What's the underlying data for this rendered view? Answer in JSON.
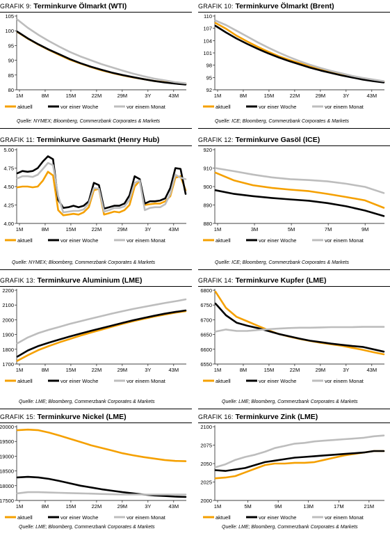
{
  "legend": [
    "aktuell",
    "vor einer Woche",
    "vor einem Monat"
  ],
  "colors": {
    "aktuell": "#f5a000",
    "woche": "#000000",
    "monat": "#bdbdbd"
  },
  "sources": {
    "s1": "Quelle: NYMEX; Bloomberg, Commerzbank Corporates & Markets",
    "s2": "Quelle: ICE; Bloomberg, Commerzbank Corporates & Markets",
    "s3": "Quelle: NYMEX; Bloomberg, Commerzbank Corporates & Markets",
    "s4": "Quelle: ICE; Bloomberg, Commerzbank Corporates & Markets",
    "s5": "Quelle: LME; Bloomberg, Commerzbank Corporates & Markets",
    "s6": "Quelle: LME; Bloomberg, Commerzbank Corporates & Markets"
  },
  "chart_data": [
    {
      "type": "line",
      "title_prefix": "GRAFIK 9:",
      "title": "Terminkurve Ölmarkt (WTI)",
      "x_ticks": [
        "1M",
        "8M",
        "15M",
        "22M",
        "29M",
        "3Y",
        "43M"
      ],
      "ylim": [
        80,
        105
      ],
      "y_ticks": [
        "80",
        "85",
        "90",
        "95",
        "100",
        "105"
      ],
      "series": [
        {
          "name": "aktuell",
          "values": [
            99.6,
            97.3,
            95.3,
            93.5,
            91.8,
            90.2,
            88.9,
            87.7,
            86.6,
            85.7,
            84.9,
            84.2,
            83.6,
            83.0,
            82.6,
            82.2,
            82.0
          ]
        },
        {
          "name": "vor einer Woche",
          "values": [
            99.7,
            97.4,
            95.4,
            93.6,
            92.0,
            90.4,
            89.0,
            87.8,
            86.8,
            85.8,
            85.0,
            84.3,
            83.6,
            83.0,
            82.5,
            82.1,
            81.8
          ]
        },
        {
          "name": "vor einem Monat",
          "values": [
            103.8,
            101.0,
            98.6,
            96.5,
            94.6,
            92.8,
            91.3,
            90.0,
            88.7,
            87.6,
            86.5,
            85.5,
            84.6,
            83.8,
            83.2,
            82.6,
            82.2
          ]
        }
      ]
    },
    {
      "type": "line",
      "title_prefix": "GRAFIK 10:",
      "title": "Terminkurve Ölmarkt (Brent)",
      "x_ticks": [
        "1M",
        "8M",
        "15M",
        "22M",
        "29M",
        "3Y",
        "43M"
      ],
      "ylim": [
        92,
        110
      ],
      "y_ticks": [
        "92",
        "95",
        "98",
        "101",
        "104",
        "107",
        "110"
      ],
      "series": [
        {
          "name": "aktuell",
          "values": [
            108.3,
            106.9,
            105.2,
            103.8,
            102.5,
            101.3,
            100.2,
            99.3,
            98.5,
            97.7,
            97.0,
            96.4,
            95.8,
            95.3,
            94.8,
            94.4,
            94.0
          ]
        },
        {
          "name": "vor einer Woche",
          "values": [
            107.6,
            106.0,
            104.5,
            103.2,
            102.0,
            100.9,
            99.9,
            99.0,
            98.2,
            97.4,
            96.7,
            96.1,
            95.5,
            95.0,
            94.5,
            94.1,
            93.8
          ]
        },
        {
          "name": "vor einem Monat",
          "values": [
            108.9,
            107.8,
            106.4,
            105.0,
            103.6,
            102.3,
            101.1,
            100.0,
            99.0,
            98.1,
            97.3,
            96.6,
            96.0,
            95.4,
            94.9,
            94.5,
            94.1
          ]
        }
      ]
    },
    {
      "type": "line",
      "title_prefix": "GRAFIK 11:",
      "title": "Terminkurve Gasmarkt (Henry Hub)",
      "x_ticks": [
        "1M",
        "8M",
        "15M",
        "22M",
        "29M",
        "3Y",
        "43M"
      ],
      "ylim": [
        4.0,
        5.0
      ],
      "y_ticks": [
        "4.00",
        "4.25",
        "4.50",
        "4.75",
        "5.00"
      ],
      "series": [
        {
          "name": "aktuell",
          "values": [
            4.49,
            4.5,
            4.5,
            4.49,
            4.5,
            4.58,
            4.7,
            4.65,
            4.18,
            4.11,
            4.12,
            4.13,
            4.12,
            4.15,
            4.22,
            4.45,
            4.47,
            4.12,
            4.14,
            4.16,
            4.15,
            4.18,
            4.25,
            4.5,
            4.58,
            4.25,
            4.26,
            4.27,
            4.27,
            4.3,
            4.37,
            4.62,
            4.64,
            4.45
          ]
        },
        {
          "name": "vor einer Woche",
          "values": [
            4.68,
            4.71,
            4.7,
            4.71,
            4.75,
            4.84,
            4.91,
            4.87,
            4.32,
            4.21,
            4.22,
            4.24,
            4.22,
            4.24,
            4.3,
            4.55,
            4.52,
            4.2,
            4.22,
            4.24,
            4.24,
            4.27,
            4.38,
            4.64,
            4.6,
            4.27,
            4.3,
            4.3,
            4.31,
            4.34,
            4.48,
            4.75,
            4.74,
            4.4
          ]
        },
        {
          "name": "vor einem Monat",
          "values": [
            4.61,
            4.64,
            4.64,
            4.63,
            4.66,
            4.74,
            4.82,
            4.79,
            4.37,
            4.15,
            4.16,
            4.17,
            4.17,
            4.19,
            4.27,
            4.48,
            4.47,
            4.16,
            4.18,
            4.21,
            4.21,
            4.23,
            4.32,
            4.55,
            4.58,
            4.18,
            4.21,
            4.22,
            4.22,
            4.26,
            4.4,
            4.66,
            4.62,
            4.6
          ]
        }
      ]
    },
    {
      "type": "line",
      "title_prefix": "GRAFIK 12:",
      "title": "Terminkurve Gasöl (ICE)",
      "x_ticks": [
        "1M",
        "3M",
        "5M",
        "7M",
        "9M"
      ],
      "ylim": [
        880,
        920
      ],
      "y_ticks": [
        "880",
        "890",
        "900",
        "910",
        "920"
      ],
      "series": [
        {
          "name": "aktuell",
          "values": [
            907.5,
            903.3,
            900.7,
            899.3,
            898.3,
            897.5,
            896.0,
            894.3,
            892.5,
            888.5
          ]
        },
        {
          "name": "vor einer Woche",
          "values": [
            898.0,
            896.0,
            894.8,
            893.8,
            893.0,
            892.3,
            891.0,
            889.3,
            887.0,
            884.0
          ]
        },
        {
          "name": "vor einem Monat",
          "values": [
            910.0,
            908.3,
            906.5,
            905.0,
            904.0,
            903.5,
            902.8,
            901.5,
            899.8,
            896.5
          ]
        }
      ]
    },
    {
      "type": "line",
      "title_prefix": "GRAFIK 13:",
      "title": "Terminkurve Aluminium (LME)",
      "x_ticks": [
        "1M",
        "8M",
        "15M",
        "22M",
        "29M",
        "3Y",
        "43M"
      ],
      "ylim": [
        1700,
        2200
      ],
      "y_ticks": [
        "1700",
        "1800",
        "1900",
        "2000",
        "2100",
        "2200"
      ],
      "series": [
        {
          "name": "aktuell",
          "values": [
            1722,
            1760,
            1795,
            1822,
            1847,
            1870,
            1893,
            1913,
            1933,
            1953,
            1972,
            1990,
            2006,
            2021,
            2035,
            2048,
            2058
          ]
        },
        {
          "name": "vor einer Woche",
          "values": [
            1750,
            1792,
            1822,
            1845,
            1866,
            1887,
            1906,
            1925,
            1943,
            1961,
            1979,
            1996,
            2012,
            2027,
            2041,
            2053,
            2063
          ]
        },
        {
          "name": "vor einem Monat",
          "values": [
            1840,
            1880,
            1910,
            1932,
            1952,
            1972,
            1990,
            2008,
            2025,
            2042,
            2058,
            2073,
            2087,
            2100,
            2113,
            2125,
            2138
          ]
        }
      ]
    },
    {
      "type": "line",
      "title_prefix": "GRAFIK 14:",
      "title": "Terminkurve Kupfer (LME)",
      "x_ticks": [
        "1M",
        "8M",
        "15M",
        "22M",
        "29M",
        "3Y",
        "43M"
      ],
      "ylim": [
        6550,
        6800
      ],
      "y_ticks": [
        "6550",
        "6600",
        "6650",
        "6700",
        "6750",
        "6800"
      ],
      "series": [
        {
          "name": "aktuell",
          "values": [
            6795,
            6740,
            6710,
            6695,
            6680,
            6665,
            6652,
            6643,
            6635,
            6628,
            6622,
            6617,
            6612,
            6605,
            6598,
            6590,
            6583
          ]
        },
        {
          "name": "vor einer Woche",
          "values": [
            6755,
            6715,
            6690,
            6680,
            6672,
            6662,
            6652,
            6644,
            6636,
            6629,
            6624,
            6619,
            6615,
            6611,
            6608,
            6600,
            6592
          ]
        },
        {
          "name": "vor einem Monat",
          "values": [
            6660,
            6667,
            6662,
            6662,
            6665,
            6668,
            6670,
            6672,
            6673,
            6673,
            6674,
            6675,
            6675,
            6675,
            6676,
            6676,
            6676
          ]
        }
      ]
    },
    {
      "type": "line",
      "title_prefix": "GRAFIK 15:",
      "title": "Terminkurve Nickel (LME)",
      "x_ticks": [
        "1M",
        "8M",
        "15M",
        "22M",
        "29M",
        "3Y",
        "43M"
      ],
      "ylim": [
        17500,
        20000
      ],
      "y_ticks": [
        "17500",
        "18000",
        "18500",
        "19000",
        "19500",
        "20000"
      ],
      "series": [
        {
          "name": "aktuell",
          "values": [
            19880,
            19900,
            19880,
            19800,
            19700,
            19590,
            19480,
            19370,
            19280,
            19190,
            19100,
            19030,
            18970,
            18920,
            18870,
            18840,
            18830
          ]
        },
        {
          "name": "vor einer Woche",
          "values": [
            18280,
            18300,
            18280,
            18230,
            18160,
            18080,
            18000,
            17940,
            17880,
            17830,
            17780,
            17740,
            17700,
            17670,
            17650,
            17630,
            17620
          ]
        },
        {
          "name": "vor einem Monat",
          "values": [
            17740,
            17780,
            17780,
            17770,
            17760,
            17750,
            17740,
            17730,
            17720,
            17710,
            17700,
            17700,
            17700,
            17700,
            17700,
            17700,
            17700
          ]
        }
      ]
    },
    {
      "type": "line",
      "title_prefix": "GRAFIK 16:",
      "title": "Terminkurve Zink (LME)",
      "x_ticks": [
        "1M",
        "5M",
        "9M",
        "13M",
        "17M",
        "21M"
      ],
      "ylim": [
        2000,
        2100
      ],
      "y_ticks": [
        "2000",
        "2025",
        "2050",
        "2075",
        "2100"
      ],
      "series": [
        {
          "name": "aktuell",
          "values": [
            2030,
            2031,
            2033,
            2038,
            2043,
            2048,
            2050,
            2050,
            2051,
            2051,
            2052,
            2055,
            2058,
            2061,
            2063,
            2065,
            2067,
            2067
          ]
        },
        {
          "name": "vor einer Woche",
          "values": [
            2041,
            2040,
            2042,
            2044,
            2048,
            2052,
            2054,
            2056,
            2058,
            2059,
            2060,
            2061,
            2062,
            2063,
            2064,
            2065,
            2067,
            2067
          ]
        },
        {
          "name": "vor einem Monat",
          "values": [
            2045,
            2049,
            2055,
            2059,
            2062,
            2066,
            2071,
            2074,
            2077,
            2078,
            2080,
            2081,
            2082,
            2083,
            2084,
            2085,
            2087,
            2088
          ]
        }
      ]
    }
  ]
}
